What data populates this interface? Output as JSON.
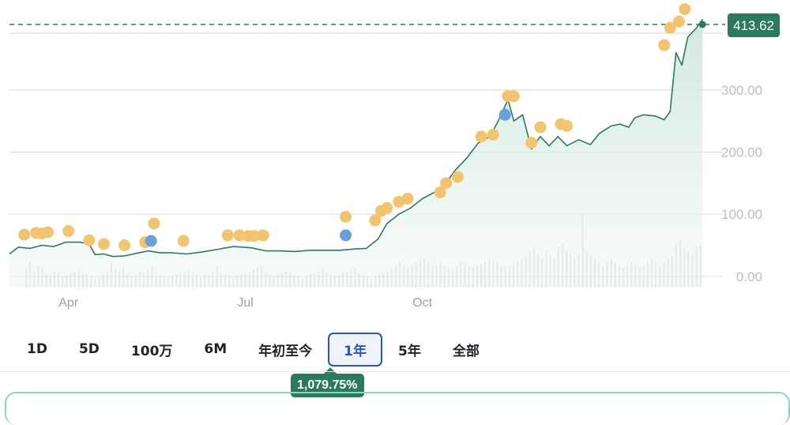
{
  "chart_data": {
    "type": "line",
    "current_value": "413.62",
    "change_label": "1,079.75%",
    "y_ticks": [
      "300.00",
      "200.00",
      "100.00",
      "0.00"
    ],
    "y_tick_values": [
      300,
      200,
      100,
      0
    ],
    "x_ticks": [
      "Apr",
      "Jul",
      "Oct"
    ],
    "x_tick_positions": [
      3.6,
      6.6,
      9.6
    ],
    "ylim": [
      -18,
      432
    ],
    "xlim": [
      2.6,
      14.4
    ],
    "price": [
      [
        2.6,
        36
      ],
      [
        2.75,
        47
      ],
      [
        2.95,
        45
      ],
      [
        3.15,
        50
      ],
      [
        3.35,
        48
      ],
      [
        3.55,
        55
      ],
      [
        3.8,
        55
      ],
      [
        3.95,
        52
      ],
      [
        4.05,
        35
      ],
      [
        4.2,
        36
      ],
      [
        4.35,
        32
      ],
      [
        4.55,
        33
      ],
      [
        4.75,
        37
      ],
      [
        4.95,
        41
      ],
      [
        5.15,
        38
      ],
      [
        5.35,
        38
      ],
      [
        5.6,
        36
      ],
      [
        5.85,
        39
      ],
      [
        6.1,
        43
      ],
      [
        6.4,
        48
      ],
      [
        6.7,
        46
      ],
      [
        6.95,
        41
      ],
      [
        7.2,
        41
      ],
      [
        7.45,
        40
      ],
      [
        7.7,
        42
      ],
      [
        7.95,
        42
      ],
      [
        8.2,
        42
      ],
      [
        8.45,
        44
      ],
      [
        8.65,
        45
      ],
      [
        8.85,
        60
      ],
      [
        9.0,
        85
      ],
      [
        9.2,
        100
      ],
      [
        9.4,
        110
      ],
      [
        9.6,
        125
      ],
      [
        9.8,
        135
      ],
      [
        10.0,
        150
      ],
      [
        10.15,
        170
      ],
      [
        10.35,
        190
      ],
      [
        10.55,
        215
      ],
      [
        10.75,
        225
      ],
      [
        10.95,
        262
      ],
      [
        11.05,
        285
      ],
      [
        11.15,
        250
      ],
      [
        11.3,
        260
      ],
      [
        11.45,
        205
      ],
      [
        11.6,
        225
      ],
      [
        11.75,
        210
      ],
      [
        11.9,
        225
      ],
      [
        12.05,
        210
      ],
      [
        12.25,
        220
      ],
      [
        12.45,
        212
      ],
      [
        12.6,
        230
      ],
      [
        12.8,
        242
      ],
      [
        12.95,
        245
      ],
      [
        13.1,
        240
      ],
      [
        13.2,
        255
      ],
      [
        13.35,
        260
      ],
      [
        13.55,
        258
      ],
      [
        13.7,
        252
      ],
      [
        13.8,
        265
      ],
      [
        13.9,
        360
      ],
      [
        14.0,
        340
      ],
      [
        14.1,
        385
      ],
      [
        14.25,
        400
      ],
      [
        14.35,
        414
      ]
    ],
    "events_orange": [
      [
        2.85,
        67
      ],
      [
        3.05,
        70
      ],
      [
        3.15,
        69
      ],
      [
        3.25,
        71
      ],
      [
        3.6,
        73
      ],
      [
        3.95,
        58
      ],
      [
        4.2,
        52
      ],
      [
        4.55,
        50
      ],
      [
        4.9,
        55
      ],
      [
        5.05,
        85
      ],
      [
        5.55,
        57
      ],
      [
        6.3,
        66
      ],
      [
        6.5,
        66
      ],
      [
        6.65,
        65
      ],
      [
        6.75,
        65
      ],
      [
        6.9,
        66
      ],
      [
        8.3,
        96
      ],
      [
        8.8,
        90
      ],
      [
        8.9,
        105
      ],
      [
        9.0,
        110
      ],
      [
        9.2,
        120
      ],
      [
        9.35,
        125
      ],
      [
        9.9,
        135
      ],
      [
        10.0,
        150
      ],
      [
        10.2,
        160
      ],
      [
        10.6,
        225
      ],
      [
        10.8,
        228
      ],
      [
        11.05,
        290
      ],
      [
        11.15,
        290
      ],
      [
        11.45,
        215
      ],
      [
        11.6,
        240
      ],
      [
        11.95,
        245
      ],
      [
        12.05,
        242
      ],
      [
        13.7,
        372
      ],
      [
        13.8,
        400
      ],
      [
        13.95,
        410
      ],
      [
        14.05,
        430
      ]
    ],
    "events_blue": [
      [
        5.0,
        57
      ],
      [
        8.3,
        66
      ],
      [
        11.0,
        260
      ]
    ],
    "volume": [
      0.25,
      0.35,
      0.22,
      0.3,
      0.28,
      0.2,
      0.18,
      0.22,
      0.2,
      0.15,
      0.18,
      0.2,
      0.22,
      0.25,
      0.2,
      0.18,
      0.15,
      0.12,
      0.15,
      0.18,
      0.2,
      0.35,
      0.25,
      0.22,
      0.28,
      0.2,
      0.15,
      0.18,
      0.22,
      0.2,
      0.25,
      0.3,
      0.2,
      0.18,
      0.15,
      0.12,
      0.15,
      0.18,
      0.2,
      0.22,
      0.25,
      0.2,
      0.18,
      0.15,
      0.18,
      0.2,
      0.22,
      0.3,
      0.2,
      0.18,
      0.15,
      0.12,
      0.15,
      0.18,
      0.2,
      0.22,
      0.25,
      0.28,
      0.3,
      0.2,
      0.18,
      0.15,
      0.18,
      0.2,
      0.22,
      0.2,
      0.18,
      0.15,
      0.12,
      0.15,
      0.18,
      0.2,
      0.22,
      0.25,
      0.2,
      0.18,
      0.15,
      0.18,
      0.2,
      0.22,
      0.25,
      0.28,
      0.2,
      0.18,
      0.15,
      0.12,
      0.15,
      0.18,
      0.2,
      0.22,
      0.25,
      0.3,
      0.35,
      0.3,
      0.28,
      0.32,
      0.35,
      0.38,
      0.4,
      0.35,
      0.3,
      0.32,
      0.35,
      0.3,
      0.28,
      0.25,
      0.3,
      0.35,
      0.32,
      0.3,
      0.28,
      0.3,
      0.32,
      0.35,
      0.4,
      0.38,
      0.35,
      0.3,
      0.28,
      0.3,
      0.32,
      0.35,
      0.4,
      0.45,
      0.5,
      0.55,
      0.45,
      0.4,
      0.5,
      0.45,
      0.4,
      0.55,
      0.6,
      0.5,
      0.45,
      0.4,
      0.45,
      1.0,
      0.5,
      0.45,
      0.4,
      0.35,
      0.3,
      0.35,
      0.4,
      0.35,
      0.3,
      0.28,
      0.32,
      0.35,
      0.3,
      0.28,
      0.3,
      0.35,
      0.4,
      0.35,
      0.3,
      0.35,
      0.4,
      0.45,
      0.6,
      0.65,
      0.55,
      0.5,
      0.45,
      0.55,
      0.6
    ],
    "colors": {
      "line": "#2b7a5f",
      "area": "#cfe6dd",
      "event_orange": "#f2c46f",
      "event_blue": "#6a9fd8",
      "grid": "#d7dadf",
      "dashed": "#2b7a5f",
      "volume": "#d7dadf"
    }
  },
  "range_selector": {
    "options": [
      "1D",
      "5D",
      "100万",
      "6M",
      "年初至今",
      "1年",
      "5年",
      "全部"
    ],
    "selected": "1年"
  }
}
